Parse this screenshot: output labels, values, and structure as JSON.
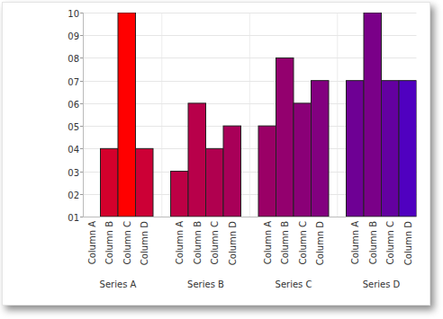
{
  "chart_data": {
    "type": "bar",
    "categories": [
      "Series A",
      "Series B",
      "Series C",
      "Series D"
    ],
    "series": [
      {
        "name": "Column A",
        "values": [
          1,
          3,
          5,
          7
        ],
        "colors": [
          "#e0001f",
          "#bd0045",
          "#9a0066",
          "#6e0094"
        ]
      },
      {
        "name": "Column B",
        "values": [
          4,
          6,
          8,
          10
        ],
        "colors": [
          "#d4002c",
          "#b8004a",
          "#93006e",
          "#7a0088"
        ]
      },
      {
        "name": "Column C",
        "values": [
          10,
          4,
          6,
          7
        ],
        "colors": [
          "#ff0000",
          "#b0004f",
          "#8a0077",
          "#6400a0"
        ]
      },
      {
        "name": "Column D",
        "values": [
          4,
          5,
          7,
          7
        ],
        "colors": [
          "#cc0036",
          "#a80058",
          "#82007f",
          "#5000c0"
        ]
      }
    ],
    "ylim": [
      1,
      10
    ],
    "yticks": [
      {
        "value": 1,
        "label": "01"
      },
      {
        "value": 2,
        "label": "02"
      },
      {
        "value": 3,
        "label": "03"
      },
      {
        "value": 4,
        "label": "04"
      },
      {
        "value": 5,
        "label": "05"
      },
      {
        "value": 6,
        "label": "06"
      },
      {
        "value": 7,
        "label": "07"
      },
      {
        "value": 8,
        "label": "08"
      },
      {
        "value": 9,
        "label": "09"
      },
      10
    ],
    "grid": true
  }
}
